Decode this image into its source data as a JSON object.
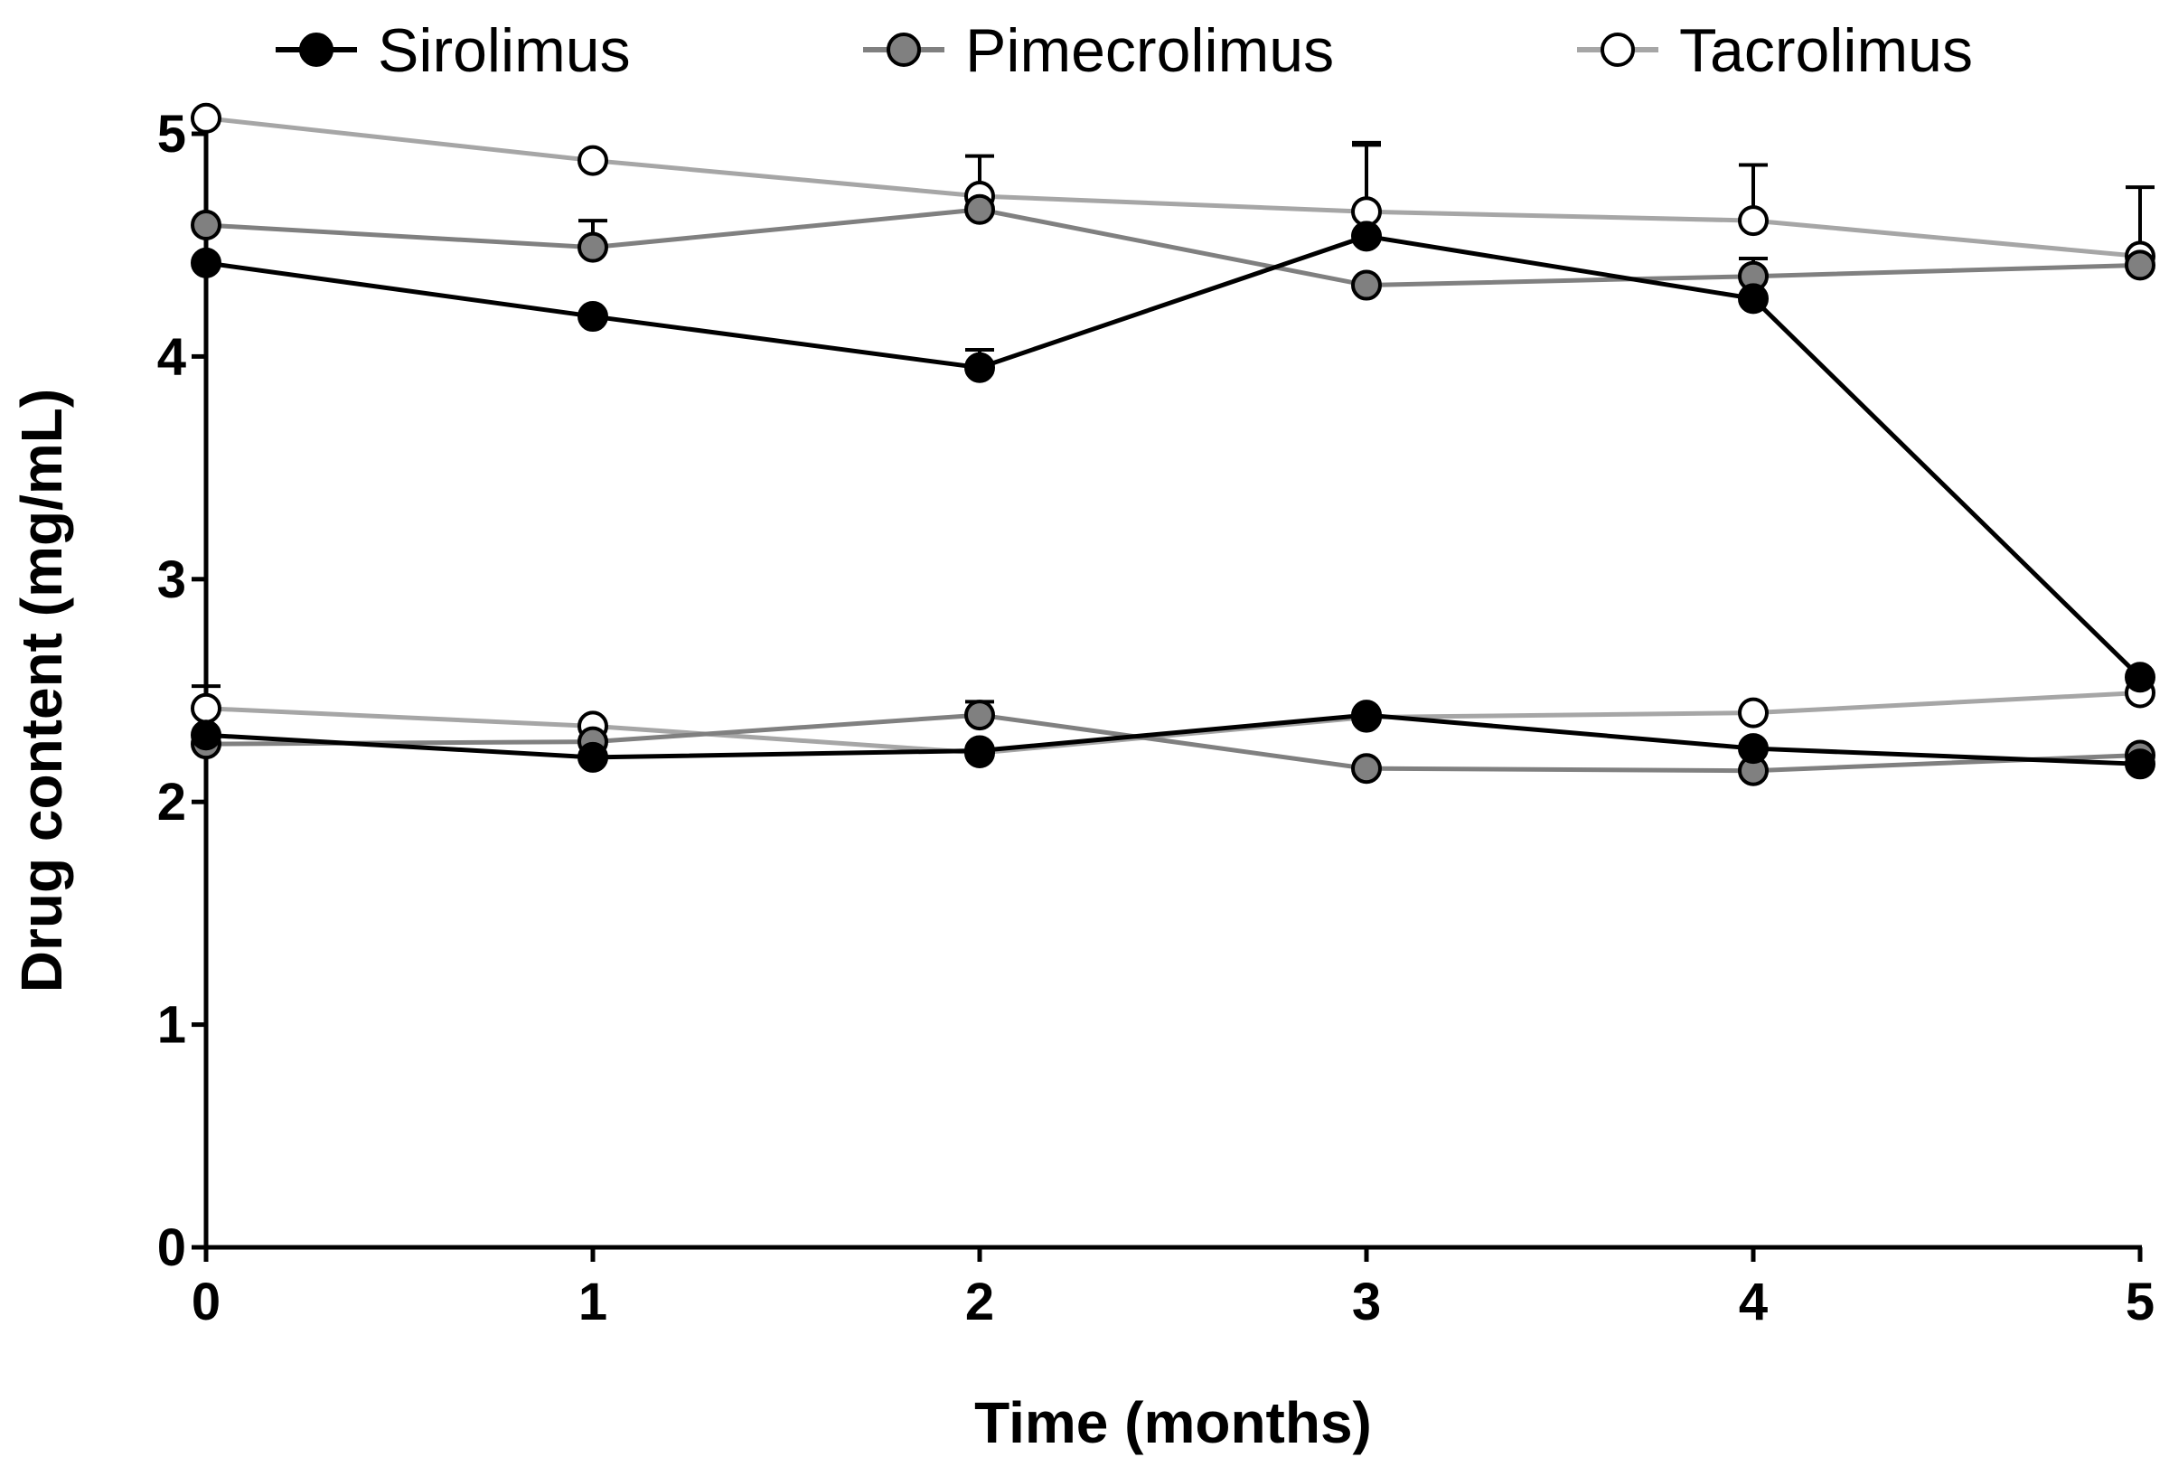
{
  "chart_data": {
    "type": "line",
    "title": "",
    "xlabel": "Time (months)",
    "ylabel": "Drug content (mg/mL)",
    "x": [
      0,
      1,
      2,
      3,
      4,
      5
    ],
    "xlim": [
      0,
      5
    ],
    "ylim": [
      0,
      5
    ],
    "xticks": [
      "0",
      "1",
      "2",
      "3",
      "4",
      "5"
    ],
    "yticks": [
      "0",
      "1",
      "2",
      "3",
      "4",
      "5"
    ],
    "grid": false,
    "legend": {
      "position": "top",
      "entries": [
        {
          "name": "Sirolimus",
          "fill": "#000000",
          "stroke": "#000000",
          "line": "#000000"
        },
        {
          "name": "Pimecrolimus",
          "fill": "#808080",
          "stroke": "#000000",
          "line": "#808080"
        },
        {
          "name": "Tacrolimus",
          "fill": "#ffffff",
          "stroke": "#000000",
          "line": "#a6a6a6"
        }
      ]
    },
    "series": [
      {
        "name": "Sirolimus",
        "group": "high",
        "values": [
          4.42,
          4.18,
          3.95,
          4.54,
          4.26,
          2.56
        ],
        "errors": [
          0,
          0,
          0.08,
          0.41,
          0,
          0
        ]
      },
      {
        "name": "Pimecrolimus",
        "group": "high",
        "values": [
          4.59,
          4.49,
          4.66,
          4.32,
          4.36,
          4.41
        ],
        "errors": [
          0,
          0.12,
          0,
          0,
          0.08,
          0
        ]
      },
      {
        "name": "Tacrolimus",
        "group": "high",
        "values": [
          5.07,
          4.88,
          4.72,
          4.65,
          4.61,
          4.45
        ],
        "errors": [
          0,
          0,
          0.18,
          0.31,
          0.25,
          0.31
        ]
      },
      {
        "name": "Sirolimus",
        "group": "low",
        "values": [
          2.3,
          2.2,
          2.23,
          2.39,
          2.24,
          2.17
        ],
        "errors": [
          0,
          0,
          0,
          0,
          0,
          0
        ]
      },
      {
        "name": "Pimecrolimus",
        "group": "low",
        "values": [
          2.26,
          2.27,
          2.39,
          2.15,
          2.14,
          2.21
        ],
        "errors": [
          0,
          0,
          0.06,
          0,
          0,
          0
        ]
      },
      {
        "name": "Tacrolimus",
        "group": "low",
        "values": [
          2.42,
          2.34,
          2.22,
          2.38,
          2.4,
          2.49
        ],
        "errors": [
          0.1,
          0,
          0,
          0,
          0,
          0
        ]
      }
    ]
  }
}
